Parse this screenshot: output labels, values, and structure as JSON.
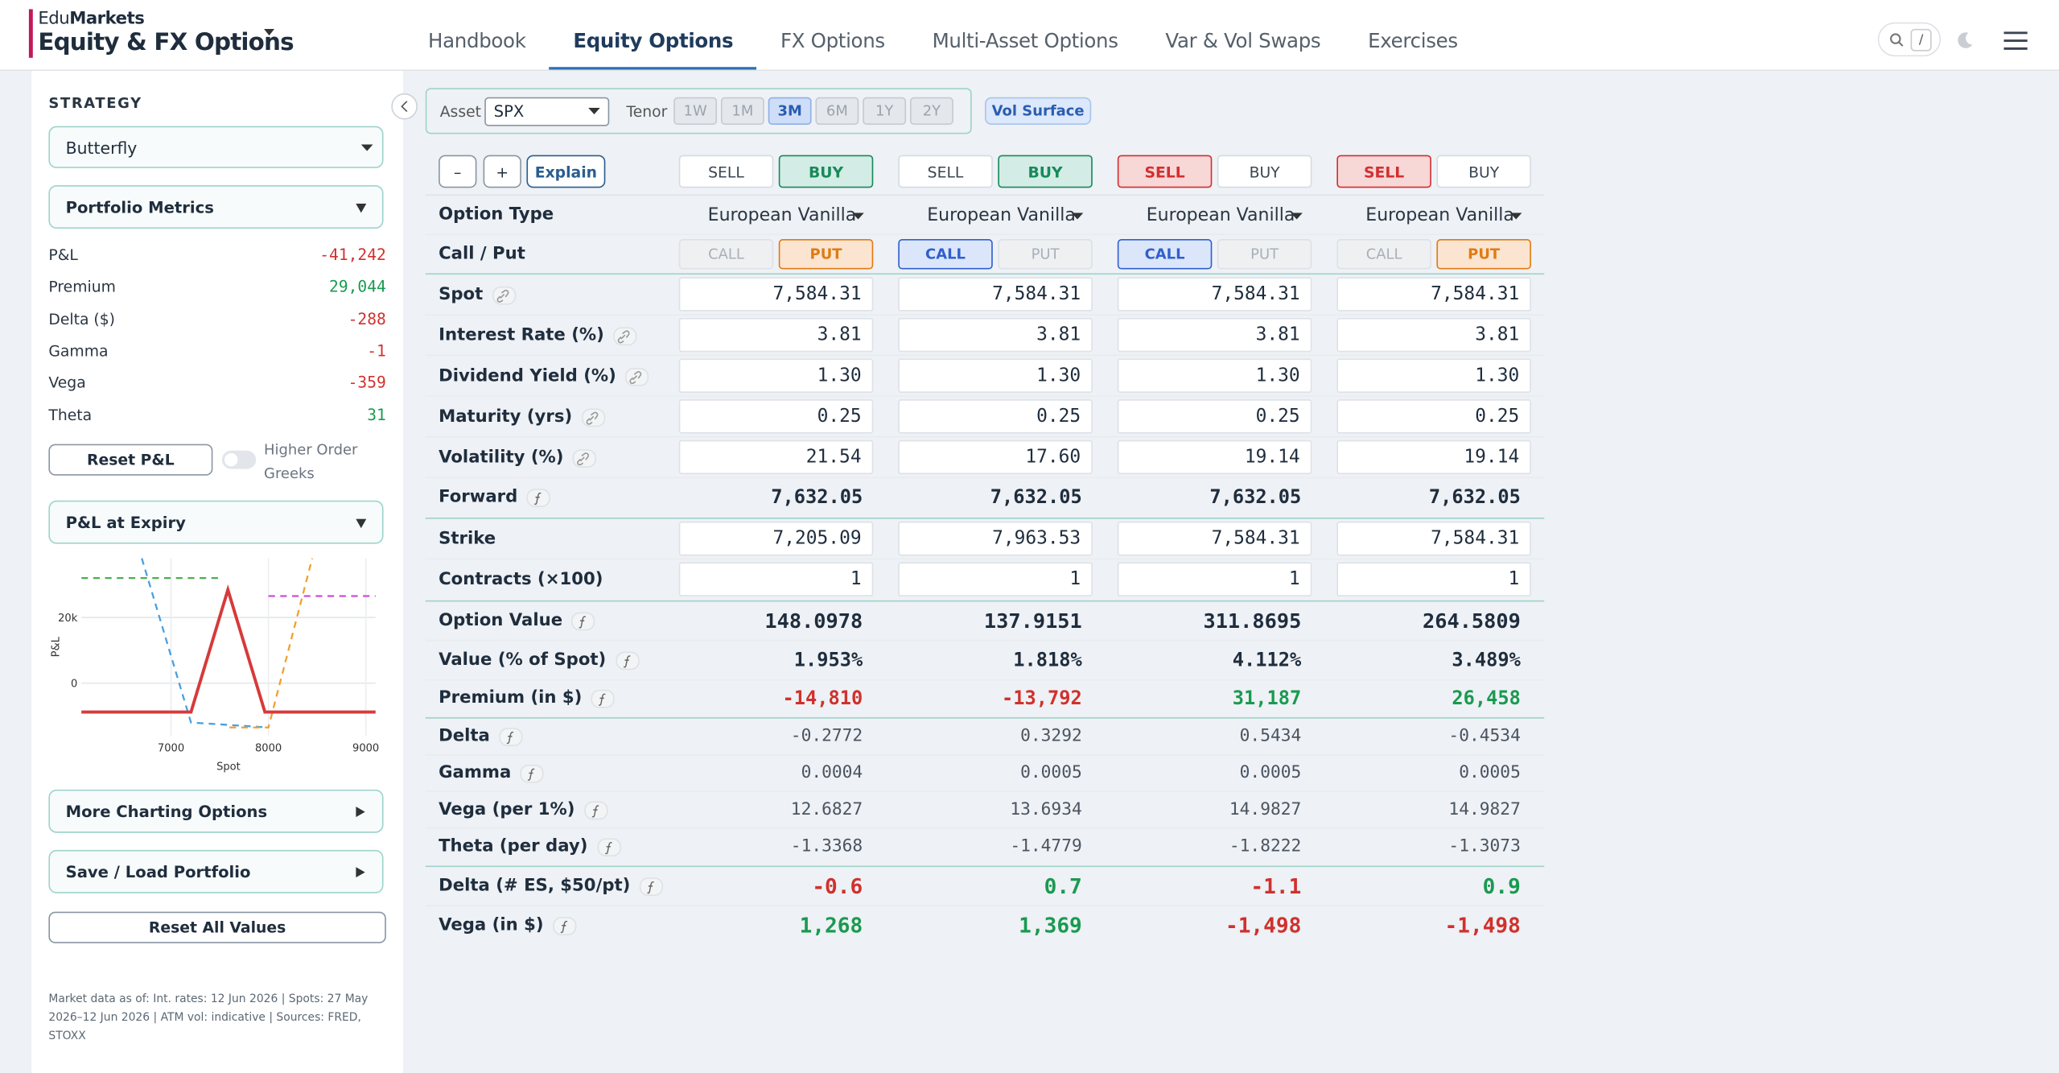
{
  "header": {
    "brand_prefix": "Edu",
    "brand_name": "Markets",
    "title": "Equity & FX Options",
    "nav": [
      "Handbook",
      "Equity Options",
      "FX Options",
      "Multi-Asset Options",
      "Var & Vol Swaps",
      "Exercises"
    ],
    "active_tab": 1,
    "search_key": "/"
  },
  "sidebar": {
    "strategy_label": "STRATEGY",
    "strategy": "Butterfly",
    "metrics_title": "Portfolio Metrics",
    "metrics": [
      {
        "label": "P&L",
        "value": "-41,242"
      },
      {
        "label": "Premium",
        "value": "29,044"
      },
      {
        "label": "Delta ($)",
        "value": "-288"
      },
      {
        "label": "Gamma",
        "value": "-1"
      },
      {
        "label": "Vega",
        "value": "-359"
      },
      {
        "label": "Theta",
        "value": "31"
      }
    ],
    "reset_pnl": "Reset P&L",
    "higher_order": "Higher Order Greeks",
    "pnl_expiry_title": "P&L at Expiry",
    "pnl_chart": {
      "type": "line",
      "xlabel": "Spot",
      "ylabel": "P&L",
      "xlim": [
        6080,
        9100
      ],
      "ylim": [
        -16000,
        38000
      ],
      "xticks": [
        7000,
        8000,
        9000
      ],
      "yticks": [
        0,
        {
          "value": 20000,
          "label": "20k"
        }
      ],
      "grid": true,
      "series": [
        {
          "color": "#4caf50",
          "dashed": true,
          "x": [
            6080,
            7500
          ],
          "values": [
            32000,
            32000
          ]
        },
        {
          "color": "#4a9fe0",
          "dashed": true,
          "x": [
            6700,
            7205,
            8000
          ],
          "values": [
            38000,
            -12000,
            -13500
          ]
        },
        {
          "color": "#f0a030",
          "dashed": true,
          "x": [
            7600,
            8000,
            8450
          ],
          "values": [
            -13500,
            -13500,
            38000
          ]
        },
        {
          "color": "#c94fd6",
          "dashed": true,
          "x": [
            8000,
            9100
          ],
          "values": [
            26500,
            26500
          ]
        },
        {
          "color": "#d63a3a",
          "dashed": false,
          "x": [
            6080,
            7205,
            7584,
            7964,
            9100
          ],
          "values": [
            -8800,
            -8800,
            28400,
            -8800,
            -8800
          ]
        }
      ]
    },
    "more_charting": "More Charting Options",
    "save_load": "Save / Load Portfolio",
    "reset_all": "Reset All Values",
    "footnote": "Market data as of: Int. rates: 12 Jun 2026 | Spots: 27 May 2026–12 Jun 2026 | ATM vol: indicative | Sources: FRED, STOXX"
  },
  "toolbar": {
    "asset_label": "Asset",
    "asset": "SPX",
    "tenor_label": "Tenor",
    "tenors": [
      "1W",
      "1M",
      "3M",
      "6M",
      "1Y",
      "2Y"
    ],
    "active_tenor": 2,
    "vol_surface": "Vol Surface",
    "minus": "–",
    "plus": "+",
    "explain": "Explain"
  },
  "legs": [
    {
      "sell": "SELL",
      "buy": "BUY",
      "side": "buy",
      "call": "CALL",
      "put": "PUT",
      "cp": "put"
    },
    {
      "sell": "SELL",
      "buy": "BUY",
      "side": "buy",
      "call": "CALL",
      "put": "PUT",
      "cp": "call"
    },
    {
      "sell": "SELL",
      "buy": "BUY",
      "side": "sell",
      "call": "CALL",
      "put": "PUT",
      "cp": "call"
    },
    {
      "sell": "SELL",
      "buy": "BUY",
      "side": "sell",
      "call": "CALL",
      "put": "PUT",
      "cp": "put"
    }
  ],
  "sections": [
    [
      {
        "label": "Option Type",
        "kind": "select",
        "values": [
          "European Vanilla",
          "European Vanilla",
          "European Vanilla",
          "European Vanilla"
        ]
      },
      {
        "label": "Call / Put",
        "kind": "toggle"
      }
    ],
    [
      {
        "label": "Spot",
        "kind": "input",
        "icon": "link",
        "values": [
          "7,584.31",
          "7,584.31",
          "7,584.31",
          "7,584.31"
        ]
      },
      {
        "label": "Interest Rate (%)",
        "kind": "input",
        "icon": "link",
        "values": [
          "3.81",
          "3.81",
          "3.81",
          "3.81"
        ]
      },
      {
        "label": "Dividend Yield (%)",
        "kind": "input",
        "icon": "link",
        "values": [
          "1.30",
          "1.30",
          "1.30",
          "1.30"
        ]
      },
      {
        "label": "Maturity (yrs)",
        "kind": "input",
        "icon": "link",
        "values": [
          "0.25",
          "0.25",
          "0.25",
          "0.25"
        ]
      },
      {
        "label": "Volatility (%)",
        "kind": "input",
        "icon": "link",
        "values": [
          "21.54",
          "17.60",
          "19.14",
          "19.14"
        ]
      },
      {
        "label": "Forward",
        "kind": "bold",
        "icon": "f",
        "values": [
          "7,632.05",
          "7,632.05",
          "7,632.05",
          "7,632.05"
        ]
      }
    ],
    [
      {
        "label": "Strike",
        "kind": "input",
        "values": [
          "7,205.09",
          "7,963.53",
          "7,584.31",
          "7,584.31"
        ]
      },
      {
        "label": "Contracts (×100)",
        "kind": "input",
        "values": [
          "1",
          "1",
          "1",
          "1"
        ]
      }
    ],
    [
      {
        "label": "Option Value",
        "kind": "big",
        "icon": "f",
        "values": [
          "148.0978",
          "137.9151",
          "311.8695",
          "264.5809"
        ]
      },
      {
        "label": "Value (% of Spot)",
        "kind": "bold",
        "icon": "f",
        "values": [
          "1.953%",
          "1.818%",
          "4.112%",
          "3.489%"
        ]
      },
      {
        "label": "Premium (in $)",
        "kind": "signed",
        "icon": "f",
        "values": [
          "-14,810",
          "-13,792",
          "31,187",
          "26,458"
        ]
      }
    ],
    [
      {
        "label": "Delta",
        "kind": "mono",
        "icon": "f",
        "values": [
          "-0.2772",
          "0.3292",
          "0.5434",
          "-0.4534"
        ]
      },
      {
        "label": "Gamma",
        "kind": "mono",
        "icon": "f",
        "values": [
          "0.0004",
          "0.0005",
          "0.0005",
          "0.0005"
        ]
      },
      {
        "label": "Vega (per 1%)",
        "kind": "mono",
        "icon": "f",
        "values": [
          "12.6827",
          "13.6934",
          "14.9827",
          "14.9827"
        ]
      },
      {
        "label": "Theta (per day)",
        "kind": "mono",
        "icon": "f",
        "values": [
          "-1.3368",
          "-1.4779",
          "-1.8222",
          "-1.3073"
        ]
      }
    ],
    [
      {
        "label": "Delta (# ES, $50/pt)",
        "kind": "large",
        "icon": "f",
        "values": [
          "-0.6",
          "0.7",
          "-1.1",
          "0.9"
        ]
      },
      {
        "label": "Vega (in $)",
        "kind": "large",
        "icon": "f",
        "values": [
          "1,268",
          "1,369",
          "-1,498",
          "-1,498"
        ]
      }
    ]
  ]
}
